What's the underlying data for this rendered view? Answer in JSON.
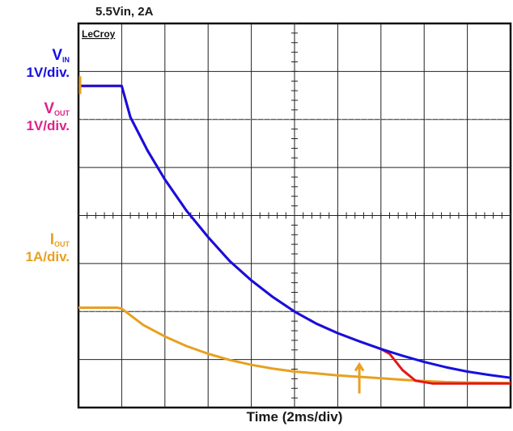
{
  "chart_data": {
    "type": "line",
    "title": "5.5Vin, 2A",
    "brand": "LeCroy",
    "xlabel": "Time (2ms/div)",
    "divisions": {
      "x": 10,
      "y": 8
    },
    "grid": true,
    "labels": {
      "vin": {
        "main": "V",
        "sub": "IN",
        "scale": "1V/div."
      },
      "vout": {
        "main": "V",
        "sub": "OUT",
        "scale": "1V/div."
      },
      "iout": {
        "main": "I",
        "sub": "OUT",
        "scale": "1A/div."
      }
    },
    "series": [
      {
        "name": "VIN",
        "color": "#1510e0",
        "points": [
          [
            0,
            6.7
          ],
          [
            1.0,
            6.7
          ],
          [
            1.2,
            6.05
          ],
          [
            1.6,
            5.35
          ],
          [
            2.0,
            4.75
          ],
          [
            2.5,
            4.1
          ],
          [
            3.0,
            3.55
          ],
          [
            3.5,
            3.05
          ],
          [
            4.0,
            2.65
          ],
          [
            4.5,
            2.3
          ],
          [
            5.0,
            2.0
          ],
          [
            5.5,
            1.75
          ],
          [
            6.0,
            1.55
          ],
          [
            6.5,
            1.38
          ],
          [
            7.0,
            1.22
          ],
          [
            7.5,
            1.08
          ],
          [
            8.0,
            0.95
          ],
          [
            8.5,
            0.84
          ],
          [
            9.0,
            0.75
          ],
          [
            9.5,
            0.68
          ],
          [
            10,
            0.62
          ]
        ]
      },
      {
        "name": "VOUT",
        "color": "#e01818",
        "points": [
          [
            0,
            6.7
          ],
          [
            1.0,
            6.7
          ],
          [
            1.2,
            6.05
          ],
          [
            1.6,
            5.35
          ],
          [
            2.0,
            4.75
          ],
          [
            2.5,
            4.1
          ],
          [
            3.0,
            3.55
          ],
          [
            3.5,
            3.05
          ],
          [
            4.0,
            2.65
          ],
          [
            4.5,
            2.3
          ],
          [
            5.0,
            2.0
          ],
          [
            5.5,
            1.75
          ],
          [
            6.0,
            1.55
          ],
          [
            6.5,
            1.38
          ],
          [
            7.0,
            1.22
          ],
          [
            7.2,
            1.12
          ],
          [
            7.5,
            0.78
          ],
          [
            7.8,
            0.56
          ],
          [
            8.2,
            0.5
          ],
          [
            9.0,
            0.5
          ],
          [
            10,
            0.5
          ]
        ]
      },
      {
        "name": "IOUT",
        "color": "#e8a020",
        "points": [
          [
            0,
            2.08
          ],
          [
            0.9,
            2.08
          ],
          [
            1.0,
            2.06
          ],
          [
            1.5,
            1.72
          ],
          [
            2.0,
            1.48
          ],
          [
            2.5,
            1.28
          ],
          [
            3.0,
            1.12
          ],
          [
            3.5,
            0.99
          ],
          [
            4.0,
            0.89
          ],
          [
            4.5,
            0.81
          ],
          [
            5.0,
            0.75
          ],
          [
            5.5,
            0.71
          ],
          [
            6.0,
            0.67
          ],
          [
            6.5,
            0.64
          ],
          [
            7.0,
            0.61
          ],
          [
            7.5,
            0.58
          ],
          [
            8.0,
            0.55
          ],
          [
            8.5,
            0.53
          ],
          [
            9.0,
            0.52
          ],
          [
            10,
            0.51
          ]
        ]
      }
    ],
    "markers": [
      {
        "name": "upper-left-marker",
        "color": "#e8a020",
        "x": 0,
        "y": 6.9
      },
      {
        "name": "trigger-marker",
        "color": "#e8a020",
        "x": 6.5,
        "y": 0.9
      }
    ]
  }
}
